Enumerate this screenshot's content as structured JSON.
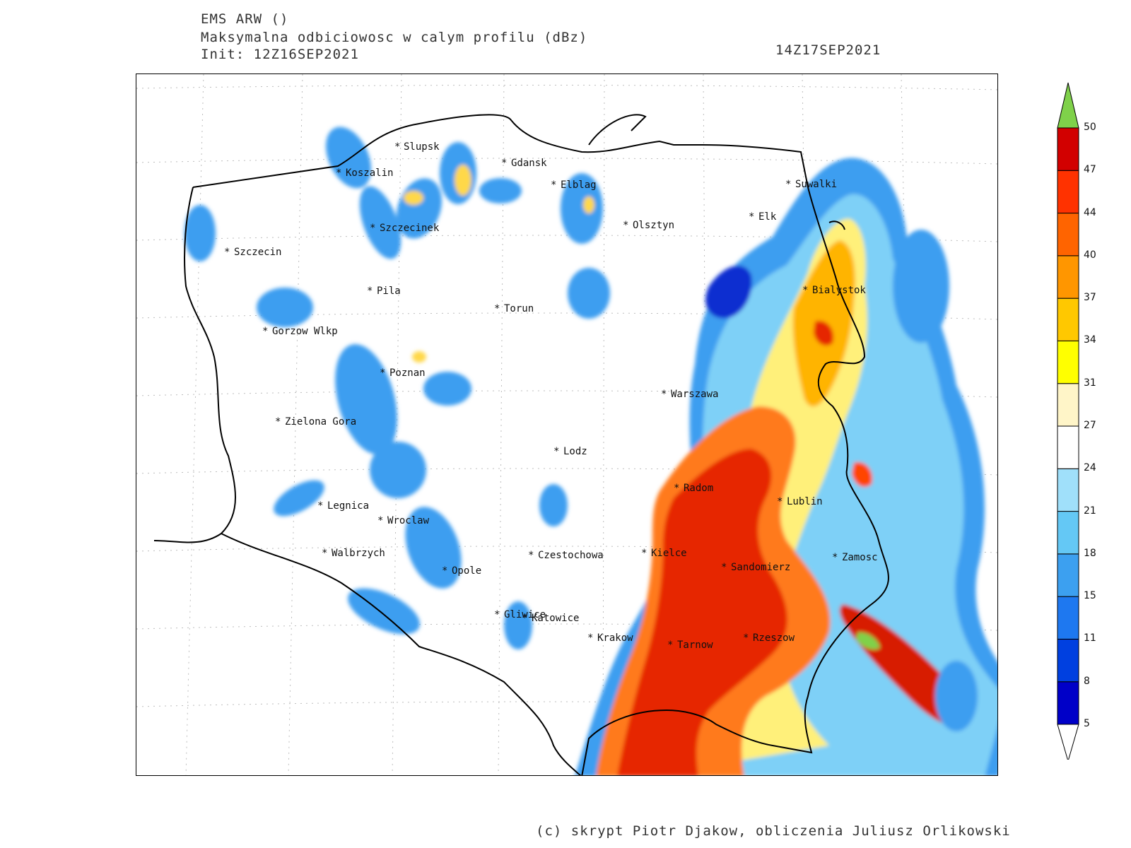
{
  "header": {
    "model": "EMS ARW ()",
    "field": "Maksymalna odbiciowosc w calym profilu (dBz)",
    "init": "Init: 12Z16SEP2021",
    "valid": "14Z17SEP2021"
  },
  "footer": "(c) skrypt Piotr Djakow, obliczenia Juliusz Orlikowski",
  "cities": [
    {
      "name": "Slupsk"
    },
    {
      "name": "Gdansk"
    },
    {
      "name": "Elblag"
    },
    {
      "name": "Suwalki"
    },
    {
      "name": "Koszalin"
    },
    {
      "name": "Szczecinek"
    },
    {
      "name": "Olsztyn"
    },
    {
      "name": "Elk"
    },
    {
      "name": "Szczecin"
    },
    {
      "name": "Pila"
    },
    {
      "name": "Torun"
    },
    {
      "name": "Bialystok"
    },
    {
      "name": "Gorzow Wlkp"
    },
    {
      "name": "Poznan"
    },
    {
      "name": "Warszawa"
    },
    {
      "name": "Zielona Gora"
    },
    {
      "name": "Lodz"
    },
    {
      "name": "Radom"
    },
    {
      "name": "Lublin"
    },
    {
      "name": "Legnica"
    },
    {
      "name": "Wroclaw"
    },
    {
      "name": "Walbrzych"
    },
    {
      "name": "Opole"
    },
    {
      "name": "Czestochowa"
    },
    {
      "name": "Kielce"
    },
    {
      "name": "Sandomierz"
    },
    {
      "name": "Zamosc"
    },
    {
      "name": "Gliwice"
    },
    {
      "name": "Katowice"
    },
    {
      "name": "Krakow"
    },
    {
      "name": "Tarnow"
    },
    {
      "name": "Rzeszow"
    }
  ],
  "colorbar": {
    "unit": "dBz",
    "ticks": [
      "5",
      "8",
      "11",
      "15",
      "18",
      "21",
      "24",
      "27",
      "31",
      "34",
      "37",
      "40",
      "44",
      "47",
      "50"
    ],
    "colors": [
      "#0000c8",
      "#0040e0",
      "#1e78f0",
      "#3ca0f0",
      "#64c8f5",
      "#a0e0fa",
      "#ffffff",
      "#fff5c8",
      "#ffff00",
      "#ffc800",
      "#ff9600",
      "#ff6400",
      "#ff3200",
      "#d20000"
    ],
    "over_color": "#7fd14a",
    "under_color": "#ffffff"
  }
}
